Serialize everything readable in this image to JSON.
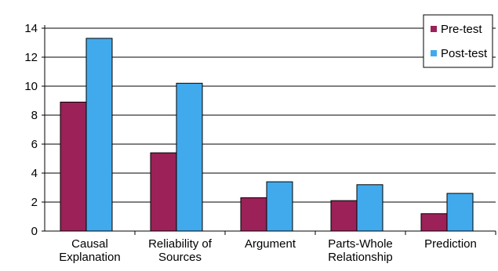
{
  "chart_data": {
    "type": "bar",
    "categories": [
      [
        "Causal",
        "Explanation"
      ],
      [
        "Reliability of",
        "Sources"
      ],
      [
        "Argument"
      ],
      [
        "Parts-Whole",
        "Relationship"
      ],
      [
        "Prediction"
      ]
    ],
    "series": [
      {
        "name": "Pre-test",
        "values": [
          8.9,
          5.4,
          2.3,
          2.1,
          1.2
        ],
        "color": "#9b2158"
      },
      {
        "name": "Post-test",
        "values": [
          13.3,
          10.2,
          3.4,
          3.2,
          2.6
        ],
        "color": "#41aaed"
      }
    ],
    "title": "",
    "xlabel": "",
    "ylabel": "",
    "ylim": [
      0,
      14
    ],
    "yticks": [
      0,
      2,
      4,
      6,
      8,
      10,
      12,
      14
    ],
    "grid": true,
    "legend_position": "top-right"
  }
}
